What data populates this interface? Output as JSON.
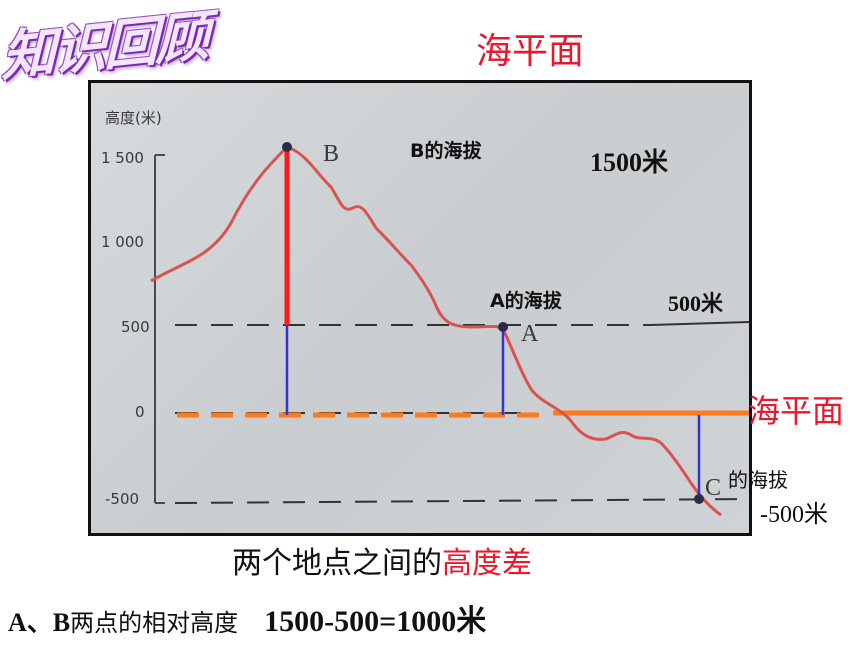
{
  "logo_text": "知识回顾",
  "title_top": "海平面",
  "chart": {
    "ylabel": "高度(米)",
    "yticks": [
      "1 500",
      "1 000",
      "500",
      "0",
      "-500"
    ],
    "point_labels": {
      "B": "B",
      "A": "A",
      "C": "C"
    }
  },
  "annotations": {
    "b_altitude_label": "B的海拔",
    "b_altitude_value": "1500米",
    "a_altitude_label": "A的海拔",
    "a_altitude_value": "500米",
    "sea_level_label": "海平面",
    "c_altitude_label": "的海拔",
    "c_altitude_value": "-500米"
  },
  "caption": {
    "prefix": "两个地点之间的",
    "highlight": "高度差"
  },
  "relative_height": {
    "label_bold": "A、B",
    "label_rest": "两点的相对高度",
    "formula": "1500-500=1000米"
  },
  "chart_data": {
    "type": "line",
    "ylabel": "高度(米)",
    "ylim": [
      -500,
      1500
    ],
    "yticks": [
      1500,
      1000,
      500,
      0,
      -500
    ],
    "points": [
      {
        "name": "B",
        "altitude": 1500
      },
      {
        "name": "A",
        "altitude": 500
      },
      {
        "name": "C",
        "altitude": -500
      }
    ],
    "reference_lines": [
      500,
      0,
      -500
    ],
    "colors": {
      "profile": "#d9534f",
      "b_to_a": "#ff1a1a",
      "to_sea": "#3333cc",
      "sea_level": "#ff7a1a"
    }
  }
}
